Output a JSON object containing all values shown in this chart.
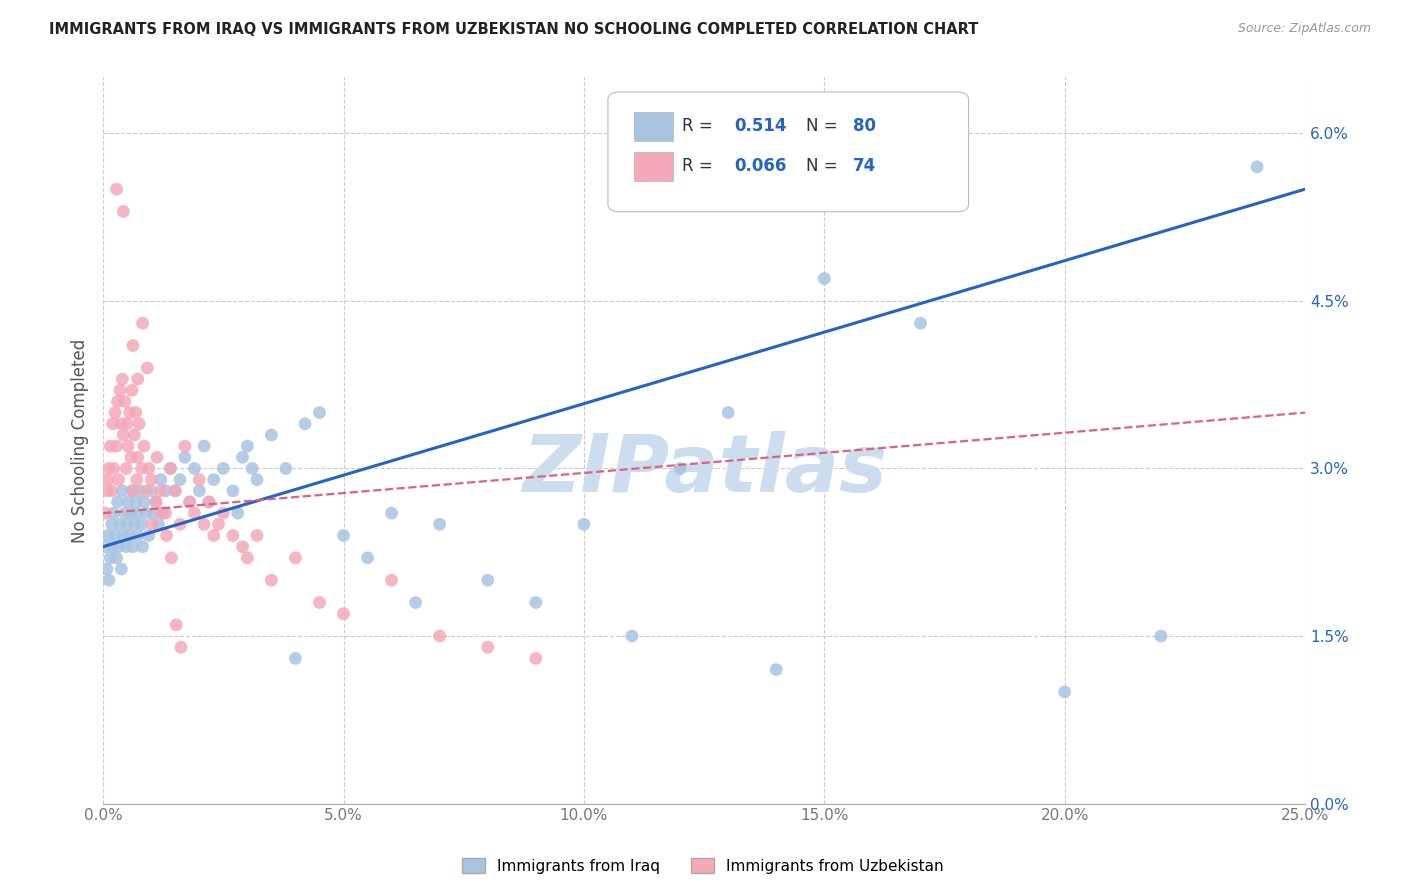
{
  "title": "IMMIGRANTS FROM IRAQ VS IMMIGRANTS FROM UZBEKISTAN NO SCHOOLING COMPLETED CORRELATION CHART",
  "source": "Source: ZipAtlas.com",
  "xlabel_vals": [
    0.0,
    5.0,
    10.0,
    15.0,
    20.0,
    25.0
  ],
  "ylabel_vals": [
    0.0,
    1.5,
    3.0,
    4.5,
    6.0
  ],
  "ylabel_label": "No Schooling Completed",
  "legend_iraq_label": "Immigrants from Iraq",
  "legend_uzbek_label": "Immigrants from Uzbekistan",
  "iraq_color": "#a8c4e0",
  "uzbek_color": "#f4a8b8",
  "iraq_line_color": "#2563c7",
  "uzbek_line_color": "#e06080",
  "r_iraq": "0.514",
  "n_iraq": "80",
  "r_uzbek": "0.066",
  "n_uzbek": "74",
  "iraq_x": [
    0.05,
    0.08,
    0.1,
    0.12,
    0.15,
    0.18,
    0.2,
    0.22,
    0.25,
    0.28,
    0.3,
    0.32,
    0.35,
    0.38,
    0.4,
    0.42,
    0.45,
    0.48,
    0.5,
    0.52,
    0.55,
    0.58,
    0.6,
    0.62,
    0.65,
    0.68,
    0.7,
    0.72,
    0.75,
    0.8,
    0.82,
    0.85,
    0.9,
    0.95,
    1.0,
    1.05,
    1.1,
    1.15,
    1.2,
    1.25,
    1.3,
    1.4,
    1.5,
    1.6,
    1.7,
    1.8,
    1.9,
    2.0,
    2.1,
    2.2,
    2.3,
    2.5,
    2.7,
    2.9,
    3.0,
    3.2,
    3.5,
    3.8,
    4.2,
    4.5,
    5.0,
    5.5,
    6.0,
    6.5,
    7.0,
    8.0,
    9.0,
    10.0,
    11.0,
    12.0,
    13.0,
    14.0,
    15.0,
    17.0,
    20.0,
    22.0,
    24.0,
    2.8,
    3.1,
    4.0
  ],
  "iraq_y": [
    2.3,
    2.1,
    2.4,
    2.0,
    2.2,
    2.5,
    2.3,
    2.6,
    2.4,
    2.2,
    2.7,
    2.3,
    2.5,
    2.1,
    2.8,
    2.4,
    2.6,
    2.3,
    2.5,
    2.7,
    2.4,
    2.6,
    2.8,
    2.3,
    2.5,
    2.7,
    2.6,
    2.4,
    2.8,
    2.5,
    2.3,
    2.7,
    2.6,
    2.4,
    2.8,
    2.6,
    2.7,
    2.5,
    2.9,
    2.6,
    2.8,
    3.0,
    2.8,
    2.9,
    3.1,
    2.7,
    3.0,
    2.8,
    3.2,
    2.7,
    2.9,
    3.0,
    2.8,
    3.1,
    3.2,
    2.9,
    3.3,
    3.0,
    3.4,
    3.5,
    2.4,
    2.2,
    2.6,
    1.8,
    2.5,
    2.0,
    1.8,
    2.5,
    1.5,
    3.0,
    3.5,
    1.2,
    4.7,
    4.3,
    1.0,
    1.5,
    5.7,
    2.6,
    3.0,
    1.3
  ],
  "uzbek_x": [
    0.05,
    0.08,
    0.1,
    0.12,
    0.15,
    0.18,
    0.2,
    0.22,
    0.25,
    0.28,
    0.3,
    0.32,
    0.35,
    0.38,
    0.4,
    0.42,
    0.45,
    0.48,
    0.5,
    0.52,
    0.55,
    0.58,
    0.6,
    0.62,
    0.65,
    0.68,
    0.7,
    0.72,
    0.75,
    0.8,
    0.85,
    0.9,
    0.95,
    1.0,
    1.1,
    1.2,
    1.3,
    1.4,
    1.5,
    1.6,
    1.7,
    1.8,
    1.9,
    2.0,
    2.1,
    2.2,
    2.3,
    2.4,
    2.5,
    2.7,
    2.9,
    3.0,
    3.2,
    3.5,
    4.0,
    4.5,
    5.0,
    6.0,
    7.0,
    8.0,
    9.0,
    0.28,
    0.42,
    0.62,
    0.72,
    0.82,
    0.92,
    1.02,
    1.12,
    1.22,
    1.32,
    1.42,
    1.52,
    1.62
  ],
  "uzbek_y": [
    2.6,
    2.8,
    2.9,
    3.0,
    3.2,
    2.8,
    3.4,
    3.0,
    3.5,
    3.2,
    3.6,
    2.9,
    3.7,
    3.4,
    3.8,
    3.3,
    3.6,
    3.0,
    3.4,
    3.2,
    3.5,
    3.1,
    3.7,
    2.8,
    3.3,
    3.5,
    2.9,
    3.1,
    3.4,
    3.0,
    3.2,
    2.8,
    3.0,
    2.9,
    2.7,
    2.8,
    2.6,
    3.0,
    2.8,
    2.5,
    3.2,
    2.7,
    2.6,
    2.9,
    2.5,
    2.7,
    2.4,
    2.5,
    2.6,
    2.4,
    2.3,
    2.2,
    2.4,
    2.0,
    2.2,
    1.8,
    1.7,
    2.0,
    1.5,
    1.4,
    1.3,
    5.5,
    5.3,
    4.1,
    3.8,
    4.3,
    3.9,
    2.5,
    3.1,
    2.6,
    2.4,
    2.2,
    1.6,
    1.4
  ],
  "xlim": [
    0,
    25
  ],
  "ylim": [
    0,
    6.5
  ],
  "background": "#ffffff",
  "grid_color": "#cccccc",
  "watermark": "ZIPatlas",
  "watermark_color": "#ccddf0"
}
